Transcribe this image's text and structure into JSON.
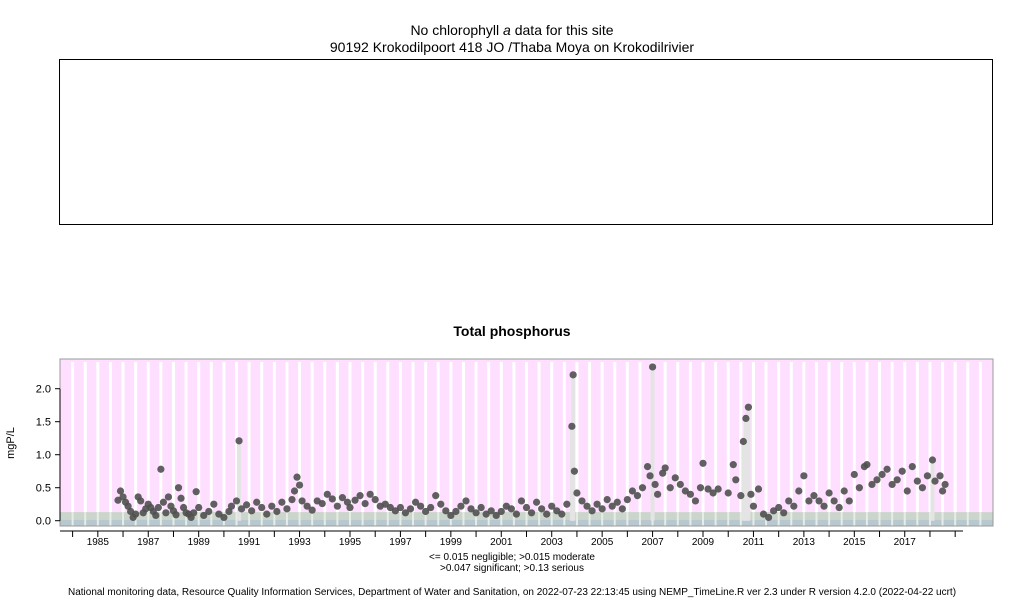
{
  "header": {
    "no_data_prefix": "No chlorophyll ",
    "no_data_italic": "a",
    "no_data_suffix": " data for this site",
    "site": "90192 Krokodilpoort 418 JO /Thaba Moya on Krokodilrivier"
  },
  "legend": {
    "line1": "<= 0.015 negligible; >0.015 moderate",
    "line2": ">0.047 significant; >0.13 serious"
  },
  "footer": "National monitoring data, Resource Quality Information Services, Department of Water and Sanitation, on 2022-07-23 22:13:45 using NEMP_TimeLine.R ver 2.3 under R version 4.2.0 (2022-04-22 ucrt)",
  "colors": {
    "background": "#ffdfff",
    "band_negligible": "#b8c8d0",
    "band_moderate": "#c8d4c8",
    "points": "#505050",
    "stripe": "#ffffff"
  },
  "chart_data": {
    "type": "scatter",
    "title": "Total phosphorus",
    "ylabel": "mgP/L",
    "xlim": [
      1983.5,
      2020.5
    ],
    "ylim": [
      -0.08,
      2.45
    ],
    "yticks": [
      0.0,
      0.5,
      1.0,
      1.5,
      2.0
    ],
    "ytick_labels": [
      "0.0",
      "0.5",
      "1.0",
      "1.5",
      "2.0"
    ],
    "xticks": [
      1985,
      1987,
      1989,
      1991,
      1993,
      1995,
      1997,
      1999,
      2001,
      2003,
      2005,
      2007,
      2009,
      2011,
      2013,
      2015,
      2017
    ],
    "xtick_labels": [
      "1985",
      "1987",
      "1989",
      "1991",
      "1993",
      "1995",
      "1997",
      "1999",
      "2001",
      "2003",
      "2005",
      "2007",
      "2009",
      "2011",
      "2013",
      "2015",
      "2017"
    ],
    "thresholds": [
      0.015,
      0.047,
      0.13
    ],
    "series": [
      {
        "values": [
          [
            1985.8,
            0.31
          ],
          [
            1985.9,
            0.45
          ],
          [
            1986.0,
            0.36
          ],
          [
            1986.1,
            0.28
          ],
          [
            1986.2,
            0.22
          ],
          [
            1986.3,
            0.14
          ],
          [
            1986.4,
            0.05
          ],
          [
            1986.5,
            0.1
          ],
          [
            1986.6,
            0.36
          ],
          [
            1986.7,
            0.3
          ],
          [
            1986.8,
            0.12
          ],
          [
            1986.9,
            0.18
          ],
          [
            1987.0,
            0.25
          ],
          [
            1987.1,
            0.2
          ],
          [
            1987.2,
            0.14
          ],
          [
            1987.3,
            0.08
          ],
          [
            1987.4,
            0.2
          ],
          [
            1987.5,
            0.78
          ],
          [
            1987.6,
            0.28
          ],
          [
            1987.7,
            0.12
          ],
          [
            1987.8,
            0.36
          ],
          [
            1987.9,
            0.22
          ],
          [
            1988.0,
            0.15
          ],
          [
            1988.1,
            0.09
          ],
          [
            1988.2,
            0.5
          ],
          [
            1988.3,
            0.34
          ],
          [
            1988.4,
            0.2
          ],
          [
            1988.5,
            0.12
          ],
          [
            1988.6,
            0.1
          ],
          [
            1988.7,
            0.05
          ],
          [
            1988.8,
            0.12
          ],
          [
            1988.9,
            0.44
          ],
          [
            1989.0,
            0.2
          ],
          [
            1989.2,
            0.08
          ],
          [
            1989.4,
            0.14
          ],
          [
            1989.6,
            0.25
          ],
          [
            1989.8,
            0.1
          ],
          [
            1990.0,
            0.05
          ],
          [
            1990.2,
            0.14
          ],
          [
            1990.3,
            0.22
          ],
          [
            1990.5,
            0.3
          ],
          [
            1990.6,
            1.21
          ],
          [
            1990.7,
            0.18
          ],
          [
            1990.9,
            0.24
          ],
          [
            1991.1,
            0.15
          ],
          [
            1991.3,
            0.28
          ],
          [
            1991.5,
            0.2
          ],
          [
            1991.7,
            0.1
          ],
          [
            1991.9,
            0.22
          ],
          [
            1992.1,
            0.14
          ],
          [
            1992.3,
            0.28
          ],
          [
            1992.5,
            0.18
          ],
          [
            1992.7,
            0.32
          ],
          [
            1992.8,
            0.45
          ],
          [
            1992.9,
            0.66
          ],
          [
            1993.0,
            0.54
          ],
          [
            1993.1,
            0.3
          ],
          [
            1993.3,
            0.22
          ],
          [
            1993.5,
            0.16
          ],
          [
            1993.7,
            0.3
          ],
          [
            1993.9,
            0.26
          ],
          [
            1994.1,
            0.4
          ],
          [
            1994.3,
            0.33
          ],
          [
            1994.5,
            0.22
          ],
          [
            1994.7,
            0.35
          ],
          [
            1994.9,
            0.28
          ],
          [
            1995.0,
            0.2
          ],
          [
            1995.2,
            0.31
          ],
          [
            1995.4,
            0.38
          ],
          [
            1995.6,
            0.26
          ],
          [
            1995.8,
            0.4
          ],
          [
            1996.0,
            0.32
          ],
          [
            1996.2,
            0.22
          ],
          [
            1996.4,
            0.25
          ],
          [
            1996.6,
            0.2
          ],
          [
            1996.8,
            0.15
          ],
          [
            1997.0,
            0.2
          ],
          [
            1997.2,
            0.12
          ],
          [
            1997.4,
            0.18
          ],
          [
            1997.6,
            0.28
          ],
          [
            1997.8,
            0.22
          ],
          [
            1998.0,
            0.14
          ],
          [
            1998.2,
            0.2
          ],
          [
            1998.4,
            0.38
          ],
          [
            1998.6,
            0.25
          ],
          [
            1998.8,
            0.15
          ],
          [
            1999.0,
            0.08
          ],
          [
            1999.2,
            0.14
          ],
          [
            1999.4,
            0.22
          ],
          [
            1999.6,
            0.3
          ],
          [
            1999.8,
            0.18
          ],
          [
            2000.0,
            0.12
          ],
          [
            2000.2,
            0.2
          ],
          [
            2000.4,
            0.1
          ],
          [
            2000.6,
            0.15
          ],
          [
            2000.8,
            0.08
          ],
          [
            2001.0,
            0.14
          ],
          [
            2001.2,
            0.22
          ],
          [
            2001.4,
            0.18
          ],
          [
            2001.6,
            0.1
          ],
          [
            2001.8,
            0.3
          ],
          [
            2002.0,
            0.2
          ],
          [
            2002.2,
            0.12
          ],
          [
            2002.4,
            0.28
          ],
          [
            2002.6,
            0.18
          ],
          [
            2002.8,
            0.1
          ],
          [
            2003.0,
            0.22
          ],
          [
            2003.2,
            0.15
          ],
          [
            2003.4,
            0.1
          ],
          [
            2003.6,
            0.25
          ],
          [
            2003.8,
            1.43
          ],
          [
            2003.85,
            2.21
          ],
          [
            2003.9,
            0.75
          ],
          [
            2004.0,
            0.42
          ],
          [
            2004.2,
            0.3
          ],
          [
            2004.4,
            0.22
          ],
          [
            2004.6,
            0.15
          ],
          [
            2004.8,
            0.25
          ],
          [
            2005.0,
            0.18
          ],
          [
            2005.2,
            0.32
          ],
          [
            2005.4,
            0.22
          ],
          [
            2005.6,
            0.28
          ],
          [
            2005.8,
            0.18
          ],
          [
            2006.0,
            0.32
          ],
          [
            2006.2,
            0.45
          ],
          [
            2006.4,
            0.38
          ],
          [
            2006.6,
            0.5
          ],
          [
            2006.8,
            0.82
          ],
          [
            2006.9,
            0.68
          ],
          [
            2007.0,
            2.33
          ],
          [
            2007.1,
            0.55
          ],
          [
            2007.2,
            0.4
          ],
          [
            2007.4,
            0.72
          ],
          [
            2007.5,
            0.8
          ],
          [
            2007.7,
            0.5
          ],
          [
            2007.9,
            0.65
          ],
          [
            2008.1,
            0.55
          ],
          [
            2008.3,
            0.45
          ],
          [
            2008.5,
            0.4
          ],
          [
            2008.7,
            0.3
          ],
          [
            2008.9,
            0.5
          ],
          [
            2009.0,
            0.87
          ],
          [
            2009.2,
            0.48
          ],
          [
            2009.4,
            0.42
          ],
          [
            2009.6,
            0.48
          ],
          [
            2010.0,
            0.42
          ],
          [
            2010.2,
            0.85
          ],
          [
            2010.3,
            0.62
          ],
          [
            2010.5,
            0.38
          ],
          [
            2010.6,
            1.2
          ],
          [
            2010.7,
            1.55
          ],
          [
            2010.8,
            1.72
          ],
          [
            2010.9,
            0.4
          ],
          [
            2011.0,
            0.22
          ],
          [
            2011.2,
            0.48
          ],
          [
            2011.4,
            0.1
          ],
          [
            2011.6,
            0.05
          ],
          [
            2011.8,
            0.15
          ],
          [
            2012.0,
            0.2
          ],
          [
            2012.2,
            0.12
          ],
          [
            2012.4,
            0.3
          ],
          [
            2012.6,
            0.22
          ],
          [
            2012.8,
            0.45
          ],
          [
            2013.0,
            0.68
          ],
          [
            2013.2,
            0.3
          ],
          [
            2013.4,
            0.38
          ],
          [
            2013.6,
            0.3
          ],
          [
            2013.8,
            0.22
          ],
          [
            2014.0,
            0.42
          ],
          [
            2014.2,
            0.3
          ],
          [
            2014.4,
            0.2
          ],
          [
            2014.6,
            0.45
          ],
          [
            2014.8,
            0.3
          ],
          [
            2015.0,
            0.7
          ],
          [
            2015.2,
            0.5
          ],
          [
            2015.4,
            0.82
          ],
          [
            2015.5,
            0.85
          ],
          [
            2015.7,
            0.55
          ],
          [
            2015.9,
            0.62
          ],
          [
            2016.1,
            0.7
          ],
          [
            2016.3,
            0.78
          ],
          [
            2016.5,
            0.55
          ],
          [
            2016.7,
            0.62
          ],
          [
            2016.9,
            0.75
          ],
          [
            2017.1,
            0.45
          ],
          [
            2017.3,
            0.82
          ],
          [
            2017.5,
            0.6
          ],
          [
            2017.7,
            0.5
          ],
          [
            2017.9,
            0.68
          ],
          [
            2018.1,
            0.92
          ],
          [
            2018.2,
            0.6
          ],
          [
            2018.4,
            0.68
          ],
          [
            2018.5,
            0.45
          ],
          [
            2018.6,
            0.55
          ]
        ]
      }
    ]
  }
}
